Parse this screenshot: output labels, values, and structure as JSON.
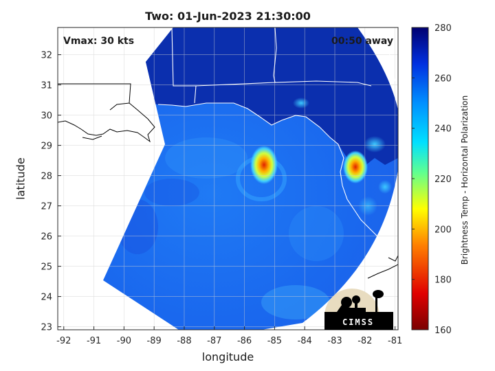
{
  "title": "Two: 01-Jun-2023 21:30:00",
  "vmax_text": "Vmax: 30 kts",
  "time_away_text": "00:50 away",
  "x_axis_label": "longitude",
  "y_axis_label": "latitude",
  "colorbar_label": "Brightness Temp - Horizontal Polarization",
  "logo_text": "CIMSS",
  "x_ticks": [
    "-92",
    "-91",
    "-90",
    "-89",
    "-88",
    "-87",
    "-86",
    "-85",
    "-84",
    "-83",
    "-82",
    "-81"
  ],
  "y_ticks": [
    "23",
    "24",
    "25",
    "26",
    "27",
    "28",
    "29",
    "30",
    "31",
    "32"
  ],
  "colorbar_ticks": [
    "160",
    "180",
    "200",
    "220",
    "240",
    "260",
    "280"
  ],
  "colors": {
    "background_ocean": "#1e6ef0",
    "land_cold": "#0a2fb0",
    "warm_core": "#e0e000",
    "hot_core": "#d02000"
  },
  "map_extent": {
    "lon_min": -92.2,
    "lon_max": -80.9,
    "lat_min": 22.9,
    "lat_max": 32.9
  },
  "warm_spots": [
    {
      "lon": -85.3,
      "lat": 28.2,
      "tb": 205
    },
    {
      "lon": -82.3,
      "lat": 28.2,
      "tb": 210
    }
  ]
}
